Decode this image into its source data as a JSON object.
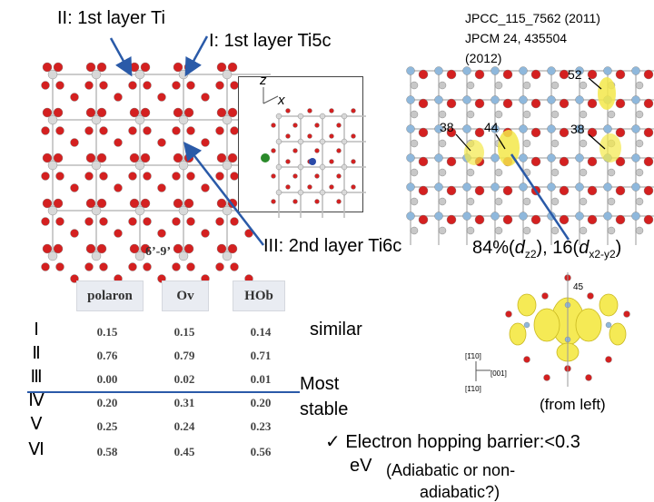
{
  "labels": {
    "layer2": "II: 1st layer Ti",
    "layer1": "I: 1st layer Ti5c",
    "layer3": "III: 2nd layer Ti6c",
    "refs": [
      "JPCC_115_7562 (2011)",
      "JPCM 24, 435504",
      "(2012)"
    ],
    "axis_z": "z",
    "axis_x": "x",
    "bottom_caption": "6’-9’",
    "site_38a": "38",
    "site_44": "44",
    "site_52": "52",
    "site_38b": "38",
    "site_45": "45",
    "dir_110": "[1̄10]",
    "dir_001": "[001]",
    "dir_110b": "[1̄10]"
  },
  "orbital": {
    "prefix": "84%(",
    "d1_base": "d",
    "d1_sub": "z2",
    "mid": "), 16(",
    "d2_base": "d",
    "d2_sub": "x2-y2",
    "suffix": ")"
  },
  "table": {
    "headers": [
      "polaron",
      "Ov",
      "HOb"
    ],
    "rows": [
      {
        "label": "Ⅰ",
        "values": [
          "0.15",
          "0.15",
          "0.14"
        ]
      },
      {
        "label": "Ⅱ",
        "values": [
          "0.76",
          "0.79",
          "0.71"
        ]
      },
      {
        "label": "Ⅲ",
        "values": [
          "0.00",
          "0.02",
          "0.01"
        ]
      },
      {
        "label": "Ⅳ",
        "values": [
          "0.20",
          "0.31",
          "0.20"
        ]
      },
      {
        "label": "Ⅴ",
        "values": [
          "0.25",
          "0.24",
          "0.23"
        ]
      },
      {
        "label": "Ⅵ",
        "values": [
          "0.58",
          "0.45",
          "0.56"
        ]
      }
    ]
  },
  "notes": {
    "similar": "similar",
    "most_stable_1": "Most",
    "most_stable_2": "stable",
    "from_left": "(from left)",
    "bullet_line1": "✓ Electron hopping barrier:<0.3",
    "bullet_line2": "eV",
    "bullet_paren": "(Adiabatic or non-",
    "bullet_line3": "adiabatic?)"
  },
  "colors": {
    "oxygen": "#d42020",
    "titanium": "#d8d8d8",
    "arrow": "#2a5aa8",
    "polaron": "#f3e84a"
  }
}
